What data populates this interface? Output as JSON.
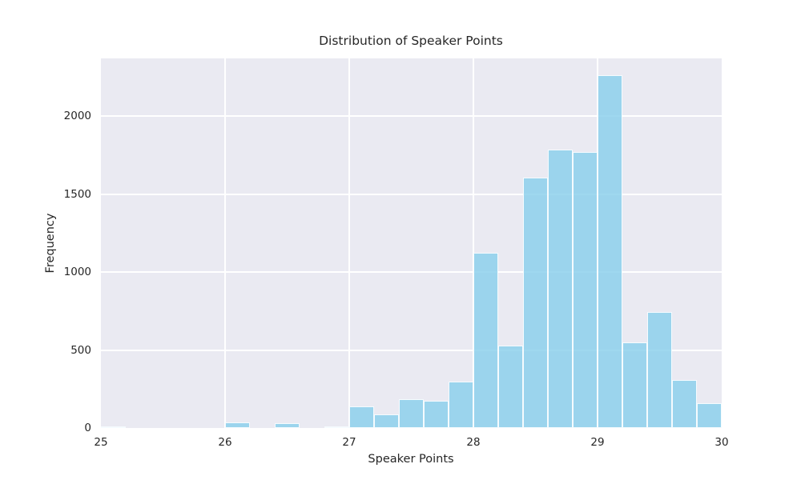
{
  "figure": {
    "background_color": "#ffffff",
    "plot_background_color": "#eaeaf2",
    "grid_color": "#ffffff",
    "text_color": "#262626",
    "bar_fill_color": "#87ceeb",
    "bar_fill_alpha": 0.8,
    "bar_edge_color": "#ffffff"
  },
  "chart_data": {
    "type": "bar",
    "subtype": "histogram",
    "title": "Distribution of Speaker Points",
    "xlabel": "Speaker Points",
    "ylabel": "Frequency",
    "xlim": [
      25,
      30
    ],
    "ylim": [
      0,
      2370
    ],
    "xticks": [
      25,
      26,
      27,
      28,
      29,
      30
    ],
    "yticks": [
      0,
      500,
      1000,
      1500,
      2000
    ],
    "grid": true,
    "legend": false,
    "bin_width": 0.2,
    "bin_edges": [
      25.0,
      25.2,
      25.4,
      25.6,
      25.8,
      26.0,
      26.2,
      26.4,
      26.6,
      26.8,
      27.0,
      27.2,
      27.4,
      27.6,
      27.8,
      28.0,
      28.2,
      28.4,
      28.6,
      28.8,
      29.0,
      29.2,
      29.4,
      29.6,
      29.8,
      30.0
    ],
    "counts": [
      8,
      0,
      0,
      0,
      0,
      35,
      0,
      30,
      0,
      10,
      140,
      85,
      185,
      175,
      300,
      1125,
      530,
      1605,
      1785,
      1770,
      2260,
      550,
      745,
      310,
      160
    ]
  }
}
